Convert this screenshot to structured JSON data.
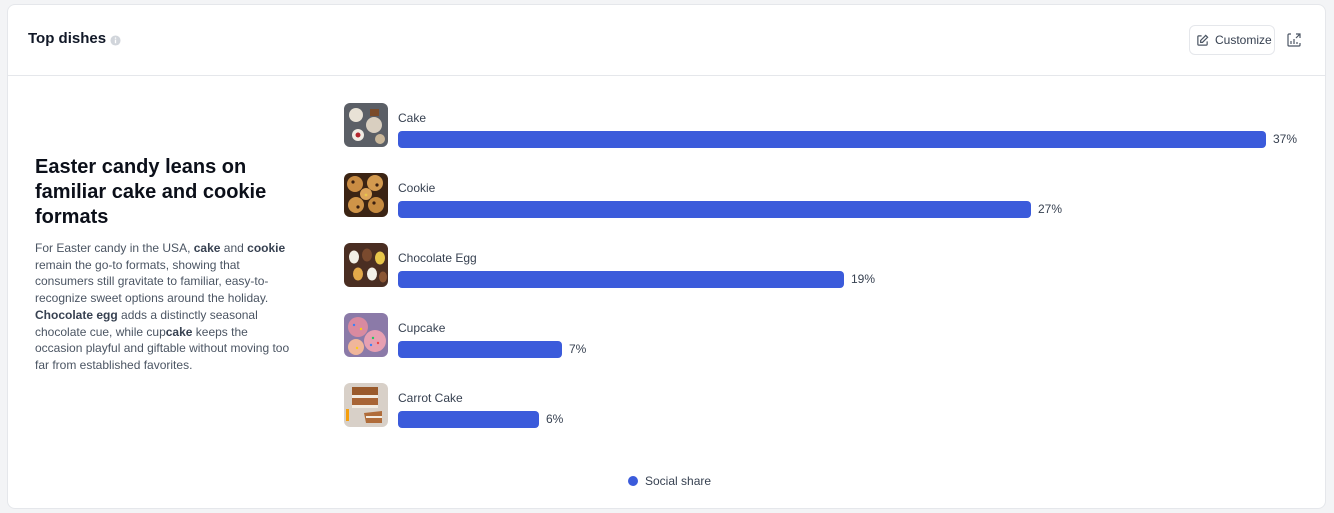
{
  "header": {
    "title": "Top dishes",
    "info_icon": "info-icon",
    "customize_label": "Customize",
    "customize_icon": "edit-icon",
    "chart_icon": "chart-export-icon"
  },
  "insight": {
    "title": "Easter candy leans on familiar cake and cookie formats",
    "body_parts": [
      {
        "text": "For Easter candy in the USA, ",
        "bold": false
      },
      {
        "text": "cake",
        "bold": true
      },
      {
        "text": " and ",
        "bold": false
      },
      {
        "text": "cookie",
        "bold": true
      },
      {
        "text": " remain the go-to formats, showing that consumers still gravitate to familiar, easy-to-recognize sweet options around the holiday. ",
        "bold": false
      },
      {
        "text": "Chocolate egg",
        "bold": true
      },
      {
        "text": " adds a distinctly seasonal chocolate cue, while cup",
        "bold": false
      },
      {
        "text": "cake",
        "bold": true
      },
      {
        "text": " keeps the occasion playful and giftable without moving too far from established favorites.",
        "bold": false
      }
    ]
  },
  "colors": {
    "bar": "#3b5bdb"
  },
  "chart_data": {
    "type": "bar",
    "orientation": "horizontal",
    "categories": [
      "Cake",
      "Cookie",
      "Chocolate Egg",
      "Cupcake",
      "Carrot Cake"
    ],
    "series": [
      {
        "name": "Social share",
        "values": [
          37,
          27,
          19,
          7,
          6
        ]
      }
    ],
    "value_labels": [
      "37%",
      "27%",
      "19%",
      "7%",
      "6%"
    ],
    "unit": "%",
    "xlim": [
      0,
      37
    ],
    "thumbnails": [
      "cake-photo",
      "cookie-photo",
      "chocolate-egg-photo",
      "cupcake-photo",
      "carrot-cake-photo"
    ],
    "legend": "bottom-center",
    "grid": false
  },
  "legend": {
    "label": "Social share"
  }
}
